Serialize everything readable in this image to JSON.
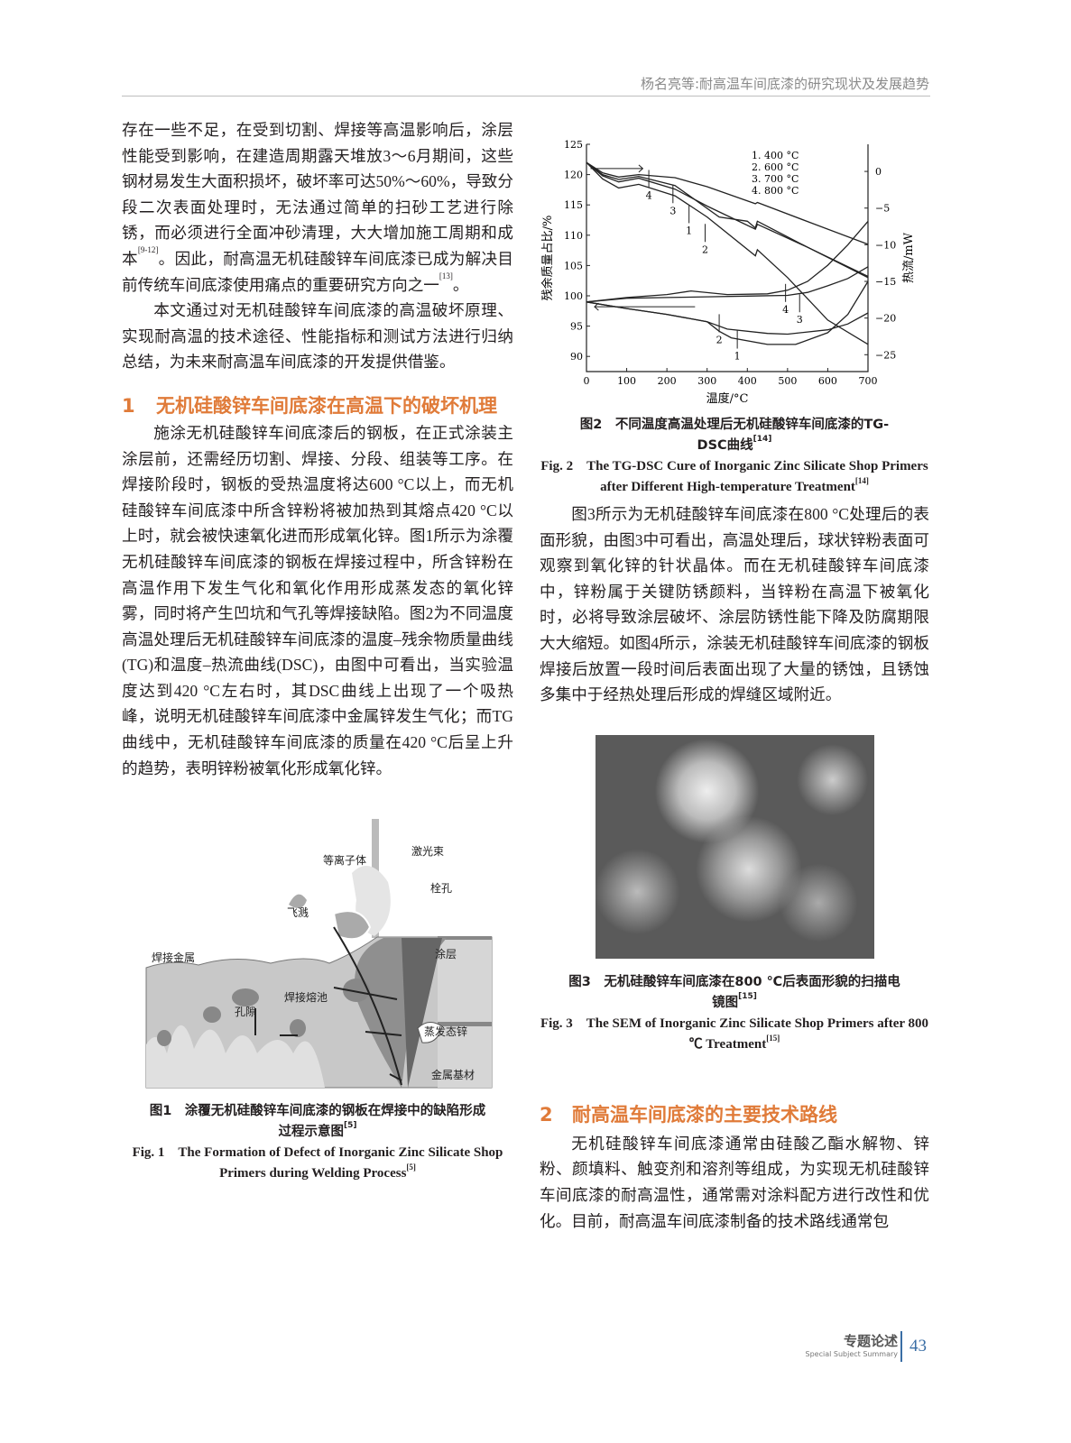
{
  "header": {
    "running_title": "杨名亮等:耐高温车间底漆的研究现状及发展趋势"
  },
  "left": {
    "p1": "存在一些不足，在受到切割、焊接等高温影响后，涂层性能受到影响，在建造周期露天堆放3～6月期间，这些钢材易发生大面积损坏，破坏率可达50%～60%，导致分段二次表面处理时，无法通过简单的扫砂工艺进行除锈，而必须进行全面冲砂清理，大大增加施工周期和成本",
    "p1_ref": "[9-12]",
    "p1b": "。因此，耐高温无机硅酸锌车间底漆已成为解决目前传统车间底漆使用痛点的重要研究方向之一",
    "p1b_ref": "[13]",
    "p1c": "。",
    "p2": "本文通过对无机硅酸锌车间底漆的高温破坏原理、实现耐高温的技术途径、性能指标和测试方法进行归纳总结，为未来耐高温车间底漆的开发提供借鉴。",
    "h1_num": "1",
    "h1_text": "无机硅酸锌车间底漆在高温下的破坏机理",
    "p3": "施涂无机硅酸锌车间底漆后的钢板，在正式涂装主涂层前，还需经历切割、焊接、分段、组装等工序。在焊接阶段时，钢板的受热温度将达600 °C以上，而无机硅酸锌车间底漆中所含锌粉将被加热到其熔点420 °C以上时，就会被快速氧化进而形成氧化锌。图1所示为涂覆无机硅酸锌车间底漆的钢板在焊接过程中，所含锌粉在高温作用下发生气化和氧化作用形成蒸发态的氧化锌雾，同时将产生凹坑和气孔等焊接缺陷。图2为不同温度高温处理后无机硅酸锌车间底漆的温度–残余物质量曲线(TG)和温度–热流曲线(DSC)，由图中可看出，当实验温度达到420 °C左右时，其DSC曲线上出现了一个吸热峰，说明无机硅酸锌车间底漆中金属锌发生气化；而TG曲线中，无机硅酸锌车间底漆的质量在420 °C后呈上升的趋势，表明锌粉被氧化形成氧化锌。",
    "fig1": {
      "labels": {
        "plasma": "等离子体",
        "laser": "激光束",
        "keyhole": "栓孔",
        "spatter": "飞溅",
        "weld_metal": "焊接金属",
        "coating": "涂层",
        "pool": "焊接熔池",
        "pore": "孔隙",
        "zinc_vapor": "蒸发态锌",
        "base": "金属基材"
      },
      "cap_cn": "图1　涂覆无机硅酸锌车间底漆的钢板在焊接中的缺陷形成过程示意图",
      "cap_cn_ref": "[5]",
      "cap_en": "Fig. 1　The Formation of Defect of Inorganic Zinc Silicate Shop Primers during Welding Process",
      "cap_en_ref": "[5]"
    }
  },
  "right": {
    "fig2": {
      "cap_cn": "图2　不同温度高温处理后无机硅酸锌车间底漆的TG-DSC曲线",
      "cap_cn_ref": "[14]",
      "cap_en": "Fig. 2　The TG-DSC Cure of Inorganic Zinc Silicate Shop Primers after Different High-temperature Treatment",
      "cap_en_ref": "[14]"
    },
    "p4": "图3所示为无机硅酸锌车间底漆在800 °C处理后的表面形貌，由图3中可看出，高温处理后，球状锌粉表面可观察到氧化锌的针状晶体。而在无机硅酸锌车间底漆中，锌粉属于关键防锈颜料，当锌粉在高温下被氧化时，必将导致涂层破坏、涂层防锈性能下降及防腐期限大大缩短。如图4所示，涂装无机硅酸锌车间底漆的钢板焊接后放置一段时间后表面出现了大量的锈蚀，且锈蚀多集中于经热处理后形成的焊缝区域附近。",
    "fig3": {
      "cap_cn": "图3　无机硅酸锌车间底漆在800 ℃后表面形貌的扫描电镜图",
      "cap_cn_ref": "[15]",
      "cap_en": "Fig. 3　The SEM of Inorganic Zinc Silicate Shop Primers after 800 ℃ Treatment",
      "cap_en_ref": "[15]"
    },
    "h2_num": "2",
    "h2_text": "耐高温车间底漆的主要技术路线",
    "p5": "无机硅酸锌车间底漆通常由硅酸乙酯水解物、锌粉、颜填料、触变剂和溶剂等组成，为实现无机硅酸锌车间底漆的耐高温性，通常需对涂料配方进行改性和优化。目前，耐高温车间底漆制备的技术路线通常包"
  },
  "footer": {
    "section_cn": "专题论述",
    "section_en": "Special Subject Summary",
    "page": "43",
    "accent": "#3a6ea5"
  },
  "colors": {
    "heading": "#e07b39"
  },
  "chart_data": {
    "type": "line",
    "xlabel": "温度/°C",
    "ylabel": "残余质量占比/%",
    "y2label": "热流/mW",
    "xlim": [
      0,
      700
    ],
    "ylim": [
      87.5,
      125
    ],
    "y2lim": [
      -27.3,
      3.7
    ],
    "xticks": [
      0,
      100,
      200,
      300,
      400,
      500,
      600,
      700
    ],
    "yticks": [
      90,
      95,
      100,
      105,
      110,
      115,
      120,
      125
    ],
    "y2ticks": [
      0,
      -5,
      -10,
      -15,
      -20,
      -25
    ],
    "legend": [
      "1. 400 °C",
      "2. 600 °C",
      "3. 700 °C",
      "4. 800 °C"
    ],
    "legend_position": "top-right",
    "tg_series": [
      {
        "name": "1",
        "x": [
          0,
          40,
          80,
          130,
          220,
          300,
          420,
          425,
          560,
          700
        ],
        "y": [
          122,
          120.3,
          119.6,
          120,
          119.5,
          118,
          115.2,
          115.4,
          112,
          108.5
        ]
      },
      {
        "name": "2",
        "x": [
          0,
          40,
          80,
          130,
          220,
          330,
          400,
          420,
          425,
          550,
          700
        ],
        "y": [
          122,
          120,
          119.2,
          119.7,
          118.2,
          113,
          112.3,
          111.2,
          112.3,
          108,
          103
        ]
      },
      {
        "name": "3",
        "x": [
          0,
          40,
          80,
          130,
          220,
          300,
          420,
          425,
          550,
          700
        ],
        "y": [
          122,
          119.8,
          118.8,
          119.4,
          117.6,
          114.8,
          111,
          111.8,
          108,
          103.2
        ]
      },
      {
        "name": "4",
        "x": [
          0,
          40,
          80,
          130,
          220,
          300,
          420,
          425,
          500,
          600,
          700
        ],
        "y": [
          122,
          119.3,
          117.8,
          118.4,
          116.5,
          113,
          106.6,
          107.6,
          103,
          96,
          92
        ]
      }
    ],
    "dsc_series": [
      {
        "name": "1",
        "x": [
          0,
          100,
          200,
          300,
          330,
          360,
          450,
          520,
          600,
          650,
          700
        ],
        "y": [
          -17.8,
          -18.7,
          -19.5,
          -20.5,
          -21.8,
          -22.7,
          -23.6,
          -23.6,
          -22,
          -19.5,
          -15
        ]
      },
      {
        "name": "2",
        "x": [
          0,
          100,
          200,
          300,
          350,
          450,
          500,
          600,
          650,
          700
        ],
        "y": [
          -17.8,
          -18.7,
          -19.5,
          -20.5,
          -21.5,
          -22.1,
          -22.2,
          -21.6,
          -20.8,
          -19.3
        ]
      },
      {
        "name": "3",
        "x": [
          0,
          100,
          200,
          300,
          400,
          500,
          550,
          600,
          650,
          700
        ],
        "y": [
          -17.8,
          -17.3,
          -17.2,
          -17.1,
          -17,
          -16.9,
          -16.5,
          -15.6,
          -14.6,
          -13
        ]
      },
      {
        "name": "4",
        "x": [
          0,
          100,
          200,
          260,
          350,
          450,
          500,
          550,
          600,
          650,
          700
        ],
        "y": [
          -17.8,
          -17.2,
          -16.8,
          -16.3,
          -16.8,
          -16.7,
          -16.2,
          -15,
          -12.8,
          -10,
          -6.8
        ]
      }
    ],
    "annotations": [
      {
        "text": "4",
        "x": 155,
        "y": 116.3
      },
      {
        "text": "3",
        "x": 215,
        "y": 113.8
      },
      {
        "text": "1",
        "x": 255,
        "y": 110.5
      },
      {
        "text": "2",
        "x": 295,
        "y": 107.4
      },
      {
        "text": "4",
        "x": 495,
        "y": 97.5
      },
      {
        "text": "3",
        "x": 530,
        "y": 95.8
      },
      {
        "text": "2",
        "x": 330,
        "y": 92.5
      },
      {
        "text": "1",
        "x": 375,
        "y": 89.8
      }
    ]
  }
}
